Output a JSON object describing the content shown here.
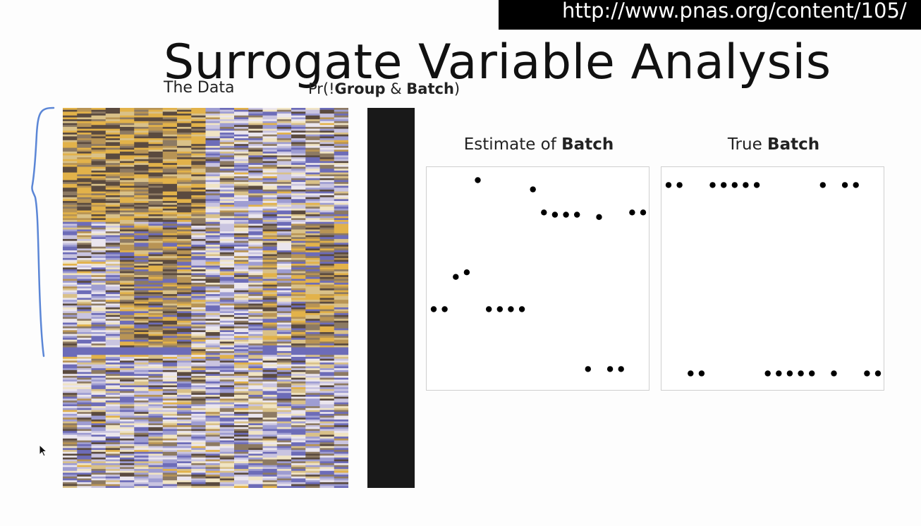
{
  "url_bar": {
    "text": "http://www.pnas.org/content/105/"
  },
  "slide": {
    "title": "Surrogate Variable Analysis",
    "label_data": "The Data",
    "label_pr": {
      "prefix": "Pr(!",
      "group": "Group",
      "amp": " & ",
      "batch": "Batch",
      "suffix": ")"
    }
  },
  "panels": {
    "estimate": {
      "title_prefix": "Estimate of ",
      "title_bold": "Batch"
    },
    "true": {
      "title_prefix": "True ",
      "title_bold": "Batch"
    }
  },
  "colors": {
    "gold": "#e2b24a",
    "purple": "#6d6cb8",
    "dark_brown": "#5a4a3f",
    "brace": "#5b86d6",
    "prob_bar": "#191919"
  },
  "icons": {
    "cursor": "mouse-pointer-icon",
    "brace": "curly-brace-icon"
  },
  "chart_data": [
    {
      "type": "scatter",
      "title": "Estimate of Batch",
      "x": [
        1,
        2,
        3,
        4,
        5,
        6,
        7,
        8,
        9,
        10,
        11,
        12,
        13,
        14,
        15,
        16,
        17,
        18,
        19,
        20
      ],
      "y": [
        -1.3,
        -1.3,
        -0.6,
        -0.5,
        1.5,
        -1.3,
        -1.3,
        -1.3,
        -1.3,
        1.3,
        0.8,
        0.75,
        0.75,
        0.75,
        -2.6,
        0.7,
        -2.6,
        -2.6,
        0.8,
        0.8
      ],
      "ylim": [
        -2.9,
        1.6
      ]
    },
    {
      "type": "scatter",
      "title": "True Batch",
      "x": [
        1,
        2,
        3,
        4,
        5,
        6,
        7,
        8,
        9,
        10,
        11,
        12,
        13,
        14,
        15,
        16,
        17,
        18,
        19,
        20
      ],
      "y": [
        1,
        1,
        0,
        0,
        1,
        1,
        1,
        1,
        1,
        0,
        0,
        0,
        0,
        0,
        1,
        0,
        1,
        1,
        0,
        0
      ],
      "ylim": [
        -0.05,
        1.05
      ]
    }
  ]
}
